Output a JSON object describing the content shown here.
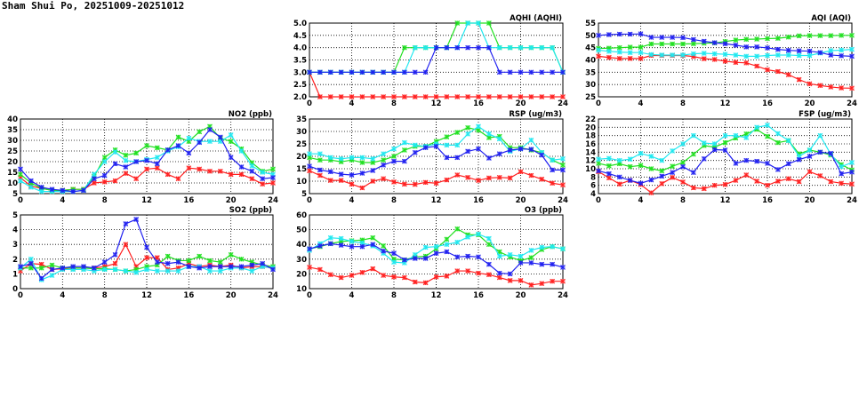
{
  "title": "Sham Shui Po, 20251009-20251012",
  "colors": {
    "red": "#ff2020",
    "green": "#20e020",
    "cyan": "#20e8f0",
    "blue": "#2020f0"
  },
  "chart_data": [
    {
      "type": "line",
      "title": "AQHI (AQHI)",
      "ylim": [
        2,
        5
      ],
      "ystep": 0.5,
      "ydec": 1,
      "xlim": [
        0,
        24
      ],
      "xticks": [
        "0",
        "4",
        "8",
        "12",
        "16",
        "20",
        "24"
      ],
      "series": [
        {
          "name": "red",
          "values": [
            3,
            2,
            2,
            2,
            2,
            2,
            2,
            2,
            2,
            2,
            2,
            2,
            2,
            2,
            2,
            2,
            2,
            2,
            2,
            2,
            2,
            2,
            2,
            2,
            2
          ]
        },
        {
          "name": "green",
          "values": [
            3,
            3,
            3,
            3,
            3,
            3,
            3,
            3,
            3,
            4,
            4,
            4,
            4,
            4,
            5,
            5,
            5,
            5,
            4,
            4,
            4,
            4,
            4,
            4,
            3
          ]
        },
        {
          "name": "cyan",
          "values": [
            3,
            3,
            3,
            3,
            3,
            3,
            3,
            3,
            3,
            3,
            4,
            4,
            4,
            4,
            4,
            5,
            5,
            4,
            4,
            4,
            4,
            4,
            4,
            4,
            3
          ]
        },
        {
          "name": "blue",
          "values": [
            3,
            3,
            3,
            3,
            3,
            3,
            3,
            3,
            3,
            3,
            3,
            3,
            4,
            4,
            4,
            4,
            4,
            4,
            3,
            3,
            3,
            3,
            3,
            3,
            3
          ]
        }
      ]
    },
    {
      "type": "line",
      "title": "AQI (AQI)",
      "ylim": [
        25,
        55
      ],
      "ystep": 5,
      "ydec": 0,
      "xlim": [
        0,
        24
      ],
      "xticks": [
        "0",
        "4",
        "8",
        "12",
        "16",
        "20",
        "24"
      ],
      "series": [
        {
          "name": "red",
          "values": [
            41.5,
            41,
            40.6,
            40.6,
            40.6,
            41.8,
            41.8,
            41.8,
            41.8,
            41.4,
            40.5,
            40.2,
            39.5,
            39,
            38.8,
            37.5,
            36,
            35.3,
            34,
            32,
            30.3,
            29.6,
            29,
            28.6,
            28.5
          ]
        },
        {
          "name": "green",
          "values": [
            44.7,
            44.8,
            45,
            45.2,
            45.2,
            46.5,
            46.5,
            46.5,
            46.5,
            46.6,
            46.8,
            46.9,
            47.5,
            48.1,
            48.4,
            48.5,
            48.7,
            48.8,
            49.3,
            49.8,
            49.9,
            49.9,
            49.9,
            50,
            50
          ]
        },
        {
          "name": "cyan",
          "values": [
            44,
            43.5,
            43.2,
            43,
            43,
            42.2,
            42,
            42,
            42,
            42.5,
            42.7,
            42.5,
            42.3,
            42,
            41.5,
            41.5,
            41.8,
            42,
            42,
            41.8,
            41.8,
            42.8,
            43.8,
            44,
            44.3
          ]
        },
        {
          "name": "blue",
          "values": [
            50,
            50.3,
            50.5,
            50.5,
            50.6,
            49.2,
            49.2,
            49.2,
            49.1,
            48.3,
            47.6,
            47,
            46.6,
            46,
            45.3,
            45.3,
            44.9,
            44.3,
            43.9,
            43.7,
            43.6,
            43,
            42,
            41.7,
            41.5
          ]
        }
      ]
    },
    {
      "type": "line",
      "title": "NO2 (ppb)",
      "ylim": [
        5,
        40
      ],
      "ystep": 5,
      "ydec": 0,
      "xlim": [
        0,
        24
      ],
      "xticks": [
        "0",
        "4",
        "8",
        "12",
        "16",
        "20",
        "24"
      ],
      "series": [
        {
          "name": "red",
          "values": [
            12.5,
            8.5,
            7.5,
            6.5,
            6.5,
            7,
            7,
            10,
            10.5,
            11,
            14.5,
            12,
            16.5,
            17,
            14,
            12,
            17,
            16.5,
            15.5,
            15.5,
            14,
            14,
            12,
            9.5,
            10
          ]
        },
        {
          "name": "green",
          "values": [
            14,
            10,
            7.5,
            6.5,
            6.5,
            7,
            7,
            13,
            22,
            25.5,
            23,
            24,
            27.5,
            26.5,
            25.5,
            31.5,
            29.5,
            34,
            36.5,
            31,
            29.5,
            26,
            19.5,
            15.5,
            16.5
          ]
        },
        {
          "name": "cyan",
          "values": [
            11,
            8,
            6,
            6,
            6,
            6,
            6.5,
            14,
            20,
            24.5,
            20.5,
            20,
            21,
            22,
            25,
            27,
            31,
            29.5,
            29.5,
            29.5,
            32.5,
            25,
            18,
            15,
            14
          ]
        },
        {
          "name": "blue",
          "values": [
            16.5,
            11,
            8,
            7,
            6.5,
            6,
            6.5,
            12,
            13.5,
            19,
            17.5,
            20,
            20.5,
            19,
            25.5,
            27.5,
            24,
            29,
            35,
            31.5,
            22,
            17.5,
            15.5,
            12,
            12.5
          ]
        }
      ]
    },
    {
      "type": "line",
      "title": "RSP (ug/m3)",
      "ylim": [
        5,
        35
      ],
      "ystep": 5,
      "ydec": 0,
      "xlim": [
        0,
        24
      ],
      "xticks": [
        "0",
        "4",
        "8",
        "12",
        "16",
        "20",
        "24"
      ],
      "series": [
        {
          "name": "red",
          "values": [
            14.2,
            12.3,
            10.3,
            10.3,
            8.8,
            7.3,
            10,
            11,
            9.7,
            8.8,
            8.7,
            9.5,
            9.2,
            10.5,
            12.5,
            11.5,
            10.3,
            11.3,
            11.5,
            11.3,
            13.8,
            12.3,
            10.8,
            9.2,
            8.5
          ]
        },
        {
          "name": "green",
          "values": [
            19.5,
            18.5,
            18.5,
            17.8,
            18.5,
            17.5,
            17.5,
            18.5,
            20,
            22.5,
            24,
            24,
            26,
            27.8,
            29.6,
            31.5,
            30.5,
            27.5,
            28,
            23.5,
            23.5,
            22.5,
            21.5,
            18.5,
            16.5
          ]
        },
        {
          "name": "cyan",
          "values": [
            21,
            21,
            19.5,
            19,
            19.5,
            19.5,
            19,
            21,
            23,
            25.5,
            24.5,
            24,
            25,
            24.5,
            24.5,
            29,
            32,
            29,
            27,
            22,
            23,
            26.5,
            21.5,
            18.5,
            19
          ]
        },
        {
          "name": "blue",
          "values": [
            16,
            14.5,
            13.8,
            12.8,
            12.5,
            13.2,
            14.3,
            16.5,
            18,
            18,
            21.5,
            23.5,
            24,
            19.5,
            19.5,
            22,
            23,
            19.3,
            21,
            22.5,
            23,
            22.8,
            20.5,
            14.5,
            14.5
          ]
        }
      ]
    },
    {
      "type": "line",
      "title": "FSP (ug/m3)",
      "ylim": [
        4,
        22
      ],
      "ystep": 2,
      "ydec": 0,
      "xlim": [
        0,
        24
      ],
      "xticks": [
        "0",
        "4",
        "8",
        "12",
        "16",
        "20",
        "24"
      ],
      "series": [
        {
          "name": "red",
          "values": [
            9.3,
            7.8,
            6.3,
            7.2,
            6.2,
            4.2,
            6.4,
            7.9,
            6.8,
            5.4,
            5.2,
            6,
            6.2,
            7.2,
            8.5,
            7,
            6,
            7,
            7.6,
            6.9,
            9.3,
            8.3,
            6.9,
            6.5,
            6.3
          ]
        },
        {
          "name": "green",
          "values": [
            11.3,
            10.7,
            11.2,
            10.5,
            10.8,
            10,
            9.5,
            10.6,
            11.5,
            13.5,
            15.6,
            15.2,
            16.3,
            17.4,
            18.4,
            19.5,
            17.8,
            16.3,
            16.8,
            13.6,
            14.5,
            14,
            13.3,
            11,
            9.7
          ]
        },
        {
          "name": "cyan",
          "values": [
            12.3,
            12.5,
            12,
            12.3,
            13.7,
            13,
            12,
            14.3,
            16,
            18,
            16.2,
            16,
            18,
            18,
            17.5,
            20,
            20.5,
            18.5,
            16.8,
            13,
            14.5,
            18,
            13.5,
            10.5,
            11.5
          ]
        },
        {
          "name": "blue",
          "values": [
            9.5,
            8.8,
            8,
            7.2,
            6.5,
            7.3,
            8.2,
            9.1,
            10.5,
            9.1,
            12.4,
            14.6,
            14.5,
            11.3,
            12,
            11.8,
            11.3,
            9.8,
            11.2,
            12.2,
            13,
            14,
            13.7,
            8.8,
            9.2
          ]
        }
      ]
    },
    {
      "type": "line",
      "title": "SO2 (ppb)",
      "ylim": [
        0,
        5
      ],
      "ystep": 1,
      "ydec": 0,
      "xlim": [
        0,
        24
      ],
      "xticks": [
        "0",
        "4",
        "8",
        "12",
        "16",
        "20",
        "24"
      ],
      "series": [
        {
          "name": "red",
          "values": [
            1.2,
            1.7,
            1.65,
            1.3,
            1.35,
            1.4,
            1.4,
            1.4,
            1.5,
            1.7,
            3,
            1.5,
            2.1,
            2.1,
            1.3,
            1.4,
            1.7,
            1.5,
            1.6,
            1.5,
            1.6,
            1.4,
            1.5,
            1.5,
            1.4
          ]
        },
        {
          "name": "green",
          "values": [
            1.4,
            1.4,
            1.4,
            1.6,
            1.4,
            1.4,
            1.4,
            1.35,
            1.35,
            1.3,
            1.2,
            1.3,
            1.5,
            1.6,
            2.2,
            1.9,
            1.9,
            2.2,
            1.9,
            1.8,
            2.3,
            2,
            1.8,
            1.6,
            1.5
          ]
        },
        {
          "name": "cyan",
          "values": [
            1.4,
            2,
            0.6,
            0.9,
            1.3,
            1.3,
            1.3,
            1.2,
            1.3,
            1.3,
            1.2,
            1.1,
            1.3,
            1.2,
            1.2,
            1.2,
            1.5,
            1.5,
            1.2,
            1.2,
            1.4,
            1.4,
            1.2,
            1.5,
            1.4
          ]
        },
        {
          "name": "blue",
          "values": [
            1.5,
            1.7,
            0.7,
            1.3,
            1.4,
            1.5,
            1.5,
            1.4,
            1.8,
            2.3,
            4.4,
            4.7,
            2.8,
            1.8,
            1.7,
            1.8,
            1.5,
            1.4,
            1.5,
            1.5,
            1.5,
            1.5,
            1.6,
            1.7,
            1.3
          ]
        }
      ]
    },
    {
      "type": "line",
      "title": "O3 (ppb)",
      "ylim": [
        10,
        60
      ],
      "ystep": 10,
      "ydec": 0,
      "xlim": [
        0,
        24
      ],
      "xticks": [
        "0",
        "4",
        "8",
        "12",
        "16",
        "20",
        "24"
      ],
      "series": [
        {
          "name": "red",
          "values": [
            24.5,
            23,
            19.5,
            17.5,
            19,
            21,
            23.5,
            19,
            18,
            17.5,
            14.5,
            14,
            18,
            18.5,
            22,
            22,
            20.5,
            19.5,
            17.5,
            15.5,
            15.5,
            12.5,
            13.5,
            15,
            15
          ]
        },
        {
          "name": "green",
          "values": [
            37,
            38.5,
            40.5,
            42,
            42.5,
            43,
            44.5,
            39,
            30,
            29.5,
            31.5,
            32,
            37,
            43.5,
            50.5,
            46.5,
            46.5,
            40,
            35,
            31.5,
            29,
            31,
            36.5,
            38.5,
            37
          ]
        },
        {
          "name": "cyan",
          "values": [
            36,
            40.5,
            44.5,
            44,
            42,
            41,
            39,
            34,
            28,
            27.5,
            33,
            38,
            38.5,
            40,
            41.5,
            45,
            47,
            44,
            32,
            33,
            32,
            36,
            38,
            38.5,
            37
          ]
        },
        {
          "name": "blue",
          "values": [
            37,
            39,
            40.5,
            39.5,
            38.5,
            38.5,
            40,
            35.5,
            34,
            29.5,
            30.5,
            30.5,
            34,
            35,
            31.5,
            32,
            31.5,
            26.5,
            20.5,
            20,
            27.5,
            27.5,
            26.5,
            26.5,
            24.5
          ]
        }
      ]
    }
  ]
}
